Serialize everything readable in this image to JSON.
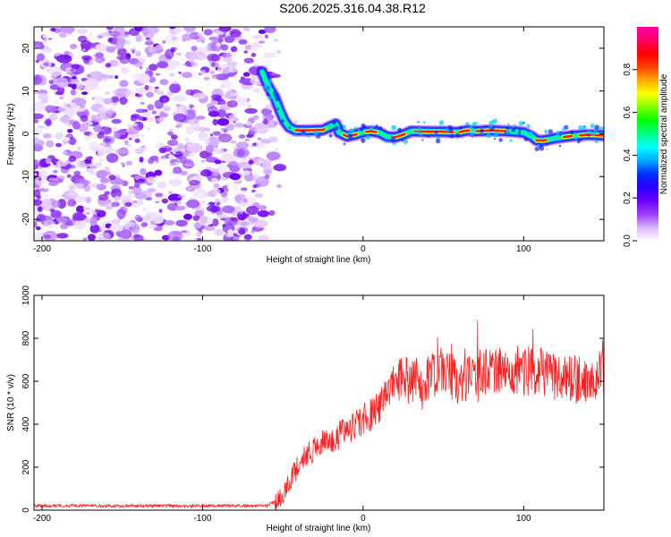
{
  "title": "S206.2025.316.04.38.R12",
  "chart_data": [
    {
      "type": "heatmap",
      "name": "spectrogram",
      "xlabel": "Height of straight line (km)",
      "ylabel": "Frequency (Hz)",
      "xlim": [
        -205,
        150
      ],
      "ylim": [
        -25,
        25
      ],
      "xticks": [
        -200,
        -100,
        0,
        100
      ],
      "yticks": [
        -20,
        -10,
        0,
        10,
        20
      ],
      "colorbar": {
        "label": "Normalized spectral amplitude",
        "range": [
          0,
          1
        ],
        "ticks": [
          0.0,
          0.2,
          0.4,
          0.6,
          0.8
        ],
        "colors": [
          "#ffffff",
          "#d9b3ff",
          "#9a3cff",
          "#6a00ff",
          "#2a00ff",
          "#0030ff",
          "#00aaff",
          "#00ffff",
          "#00ff80",
          "#00ff00",
          "#80ff00",
          "#ffff00",
          "#ffaa00",
          "#ff4000",
          "#ff0000",
          "#ff0066",
          "#ff00aa"
        ]
      },
      "noise_region_x": [
        -205,
        -55
      ],
      "ridge": [
        [
          -63,
          14.5
        ],
        [
          -59,
          11
        ],
        [
          -55,
          8.5
        ],
        [
          -52,
          5.5
        ],
        [
          -49,
          3
        ],
        [
          -46,
          1.5
        ],
        [
          -42,
          0.8
        ],
        [
          -35,
          0.8
        ],
        [
          -25,
          0.9
        ],
        [
          -20,
          1.8
        ],
        [
          -17,
          2.3
        ],
        [
          -15,
          0.3
        ],
        [
          -10,
          -0.6
        ],
        [
          -5,
          -0.2
        ],
        [
          0,
          0.4
        ],
        [
          5,
          0.6
        ],
        [
          10,
          0.3
        ],
        [
          15,
          -0.7
        ],
        [
          20,
          -0.8
        ],
        [
          25,
          -0.2
        ],
        [
          30,
          0.6
        ],
        [
          40,
          0.5
        ],
        [
          50,
          0.5
        ],
        [
          55,
          0.4
        ],
        [
          60,
          0.4
        ],
        [
          65,
          0.8
        ],
        [
          70,
          0.6
        ],
        [
          80,
          0.8
        ],
        [
          90,
          0.6
        ],
        [
          95,
          0.5
        ],
        [
          100,
          0.3
        ],
        [
          105,
          -0.6
        ],
        [
          108,
          -1.5
        ],
        [
          112,
          -1.6
        ],
        [
          120,
          -1.0
        ],
        [
          130,
          -0.5
        ],
        [
          140,
          -0.2
        ],
        [
          150,
          -0.4
        ]
      ]
    },
    {
      "type": "line",
      "name": "snr",
      "xlabel": "Height of straight line (km)",
      "ylabel": "SNR (10 * v/v)",
      "xlim": [
        -205,
        150
      ],
      "ylim": [
        0,
        1000
      ],
      "xticks": [
        -200,
        -100,
        0,
        100
      ],
      "yticks": [
        0,
        200,
        400,
        600,
        800,
        1000
      ],
      "color": "#ff2020",
      "series": [
        {
          "name": "SNR",
          "x": [
            -205,
            -150,
            -100,
            -60,
            -50,
            -40,
            -30,
            -20,
            -10,
            0,
            10,
            20,
            30,
            40,
            50,
            60,
            70,
            80,
            90,
            100,
            110,
            120,
            130,
            140,
            150
          ],
          "values": [
            20,
            20,
            20,
            20,
            60,
            220,
            290,
            330,
            370,
            420,
            470,
            620,
            600,
            620,
            650,
            600,
            640,
            650,
            650,
            640,
            650,
            620,
            600,
            610,
            640
          ]
        }
      ]
    }
  ]
}
